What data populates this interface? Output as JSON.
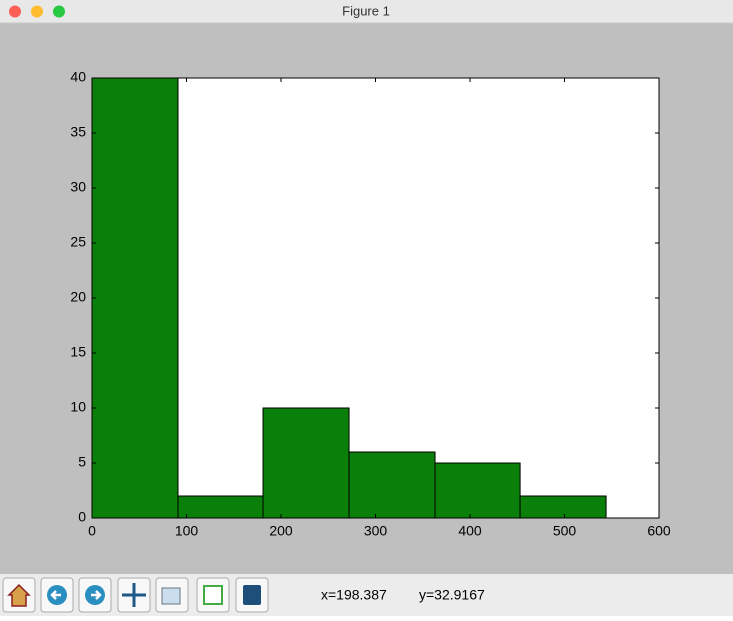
{
  "window": {
    "title": "Figure 1"
  },
  "chart_data": {
    "type": "histogram",
    "bins": [
      0,
      91,
      181,
      272,
      363,
      453,
      544
    ],
    "values": [
      40,
      2,
      10,
      6,
      5,
      2
    ],
    "color": "#0a800a",
    "xlim": [
      0,
      600
    ],
    "xticks": [
      0,
      100,
      200,
      300,
      400,
      500,
      600
    ],
    "ylim": [
      0,
      40
    ],
    "yticks": [
      0,
      5,
      10,
      15,
      20,
      25,
      30,
      35,
      40
    ]
  },
  "status": {
    "x": "x=198.387",
    "y": "y=32.9167"
  }
}
